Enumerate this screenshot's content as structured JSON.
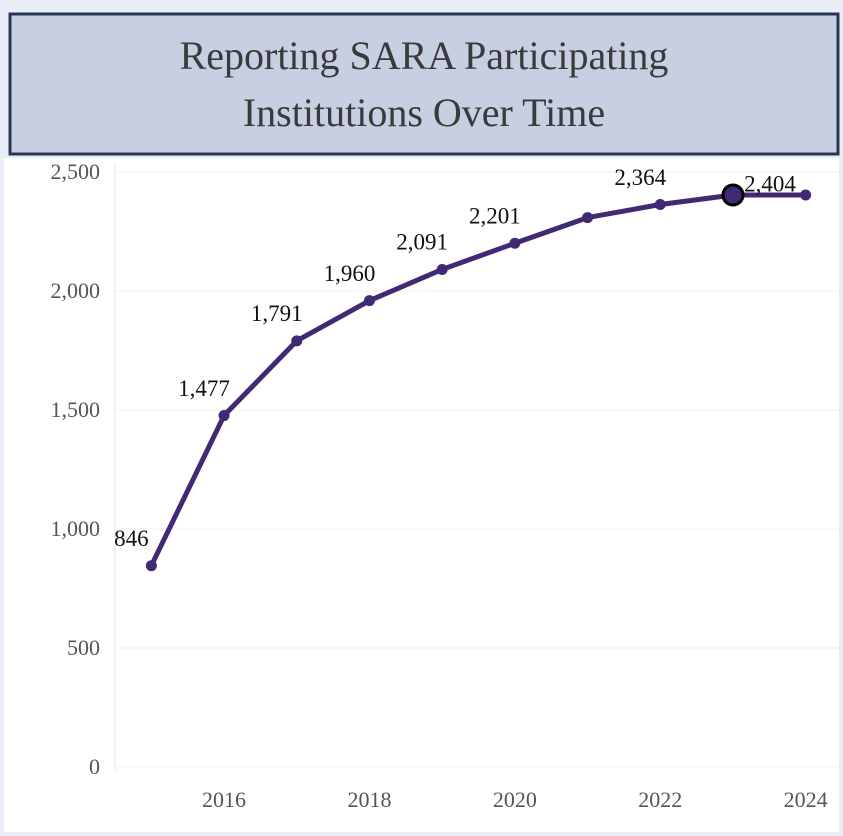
{
  "chart_data": {
    "type": "line",
    "title": [
      "Reporting SARA Participating",
      "Institutions Over Time"
    ],
    "x": [
      2015,
      2016,
      2017,
      2018,
      2019,
      2020,
      2021,
      2022,
      2023,
      2024
    ],
    "series": [
      {
        "color": "#3f2a73",
        "values": [
          846,
          1477,
          1791,
          1960,
          2091,
          2201,
          2309,
          2364,
          2404,
          2404
        ],
        "value_labels": [
          "846",
          "1,477",
          "1,791",
          "1,960",
          "2,091",
          "2,201",
          null,
          "2,364",
          "2,404",
          null
        ]
      }
    ],
    "highlight_index": 8,
    "xlim": [
      2014.5,
      2024.5
    ],
    "xticks": [
      2016,
      2018,
      2020,
      2022,
      2024
    ],
    "ylim": [
      0,
      2530
    ],
    "yticks": [
      0,
      500,
      {
        "value": 1000,
        "label": "1,000"
      },
      {
        "value": 1500,
        "label": "1,500"
      },
      {
        "value": 2000,
        "label": "2,000"
      },
      {
        "value": 2500,
        "label": "2,500"
      }
    ],
    "grid": true
  }
}
